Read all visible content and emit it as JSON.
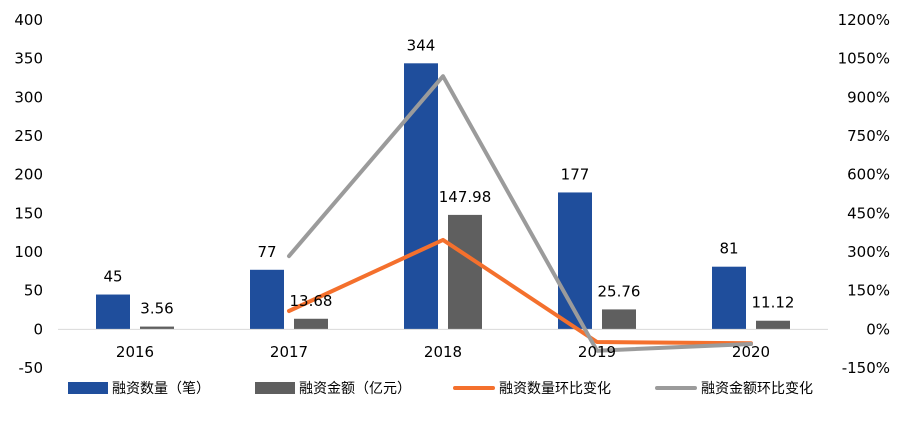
{
  "chart_data": {
    "type": "bar",
    "categories": [
      "2016",
      "2017",
      "2018",
      "2019",
      "2020"
    ],
    "y_left": {
      "min": -50,
      "max": 400,
      "step": 50
    },
    "y_right": {
      "min": -150,
      "max": 1200,
      "step": 150,
      "suffix": "%"
    },
    "bar_series": [
      {
        "name": "融资数量（笔）",
        "color": "#1f4e9c",
        "values": [
          45,
          77,
          344,
          177,
          81
        ],
        "labels": [
          "45",
          "77",
          "344",
          "177",
          "81"
        ]
      },
      {
        "name": "融资金额（亿元）",
        "color": "#5f5f5f",
        "values": [
          3.56,
          13.68,
          147.98,
          25.76,
          11.12
        ],
        "labels": [
          "3.56",
          "13.68",
          "147.98",
          "25.76",
          "11.12"
        ]
      }
    ],
    "line_series": [
      {
        "name": "融资数量环比变化",
        "color": "#f4702d",
        "axis": "right",
        "values": [
          null,
          71,
          347,
          -49,
          -54
        ]
      },
      {
        "name": "融资金额环比变化",
        "color": "#9b9b9b",
        "axis": "right",
        "values": [
          null,
          284,
          982,
          -83,
          -57
        ]
      }
    ],
    "legend_position": "bottom",
    "grid": false
  }
}
